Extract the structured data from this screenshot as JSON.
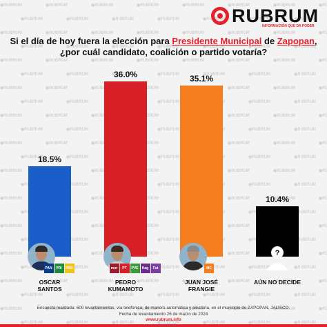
{
  "brand": {
    "name": "RUBRUM",
    "tagline": "INFORMACIÓN QUE DA PODER",
    "accent": "#e4222b",
    "watermark": "RUBRUM"
  },
  "question": {
    "part1": "Si el día de hoy fuera la elección para ",
    "highlight1": "Presidente Municipal",
    "part2": " de ",
    "highlight2": "Zapopan",
    "part3": ",",
    "line2": "¿por cuál candidato, coalición o partido votaría?"
  },
  "chart_data": {
    "type": "bar",
    "title": "Si el día de hoy fuera la elección para Presidente Municipal de Zapopan, ¿por cuál candidato, coalición o partido votaría?",
    "categories": [
      "OSCAR SANTOS",
      "PEDRO KUMAMOTO",
      "JUAN JOSÉ FRANGIE",
      "AÚN NO DECIDE"
    ],
    "values": [
      18.5,
      36.0,
      35.1,
      10.4
    ],
    "labels": [
      "18.5%",
      "36.0%",
      "35.1%",
      "10.4%"
    ],
    "colors": [
      "#1a5cc8",
      "#d61f26",
      "#f47d20",
      "#000000"
    ],
    "ylim": [
      0,
      36.0
    ],
    "grid": false,
    "legend": "none"
  },
  "candidates": [
    {
      "name": "OSCAR\nSANTOS",
      "parties": [
        "PAN",
        "PRI",
        "PRD"
      ],
      "party_colors": [
        "#0a3c8c",
        "#1f8a3a",
        "#f2c31b"
      ],
      "hair": "#2b2b2b",
      "shirt": "#1c2e5a"
    },
    {
      "name": "PEDRO\nKUMAMOTO",
      "parties": [
        "morena",
        "PT",
        "PVEM",
        "Hagamos",
        "Futuro"
      ],
      "party_colors": [
        "#9c1d2e",
        "#d62027",
        "#3a9a3a",
        "#6b2d8c",
        "#7b3fa0"
      ],
      "hair": "#3a2a20",
      "shirt": "#cfcfcf"
    },
    {
      "name": "JUAN JOSÉ\nFRANGIE",
      "parties": [
        "MC"
      ],
      "party_colors": [
        "#f47d20"
      ],
      "hair": "#8a8a8a",
      "shirt": "#2a2a2a"
    },
    {
      "name": "AÚN NO DECIDE",
      "parties": [],
      "party_colors": [],
      "hair": "#000000",
      "shirt": "#000000"
    }
  ],
  "footer": {
    "line1": "Encuesta realizada: 600 levantamientos, vía telefónica, de manera automática y aleatoria, en el municipio de ZAPOPAN, JALISCO.",
    "line2": "Fecha de levantamiento 26 de marzo de 2024",
    "url": "www.rubrum.info"
  }
}
